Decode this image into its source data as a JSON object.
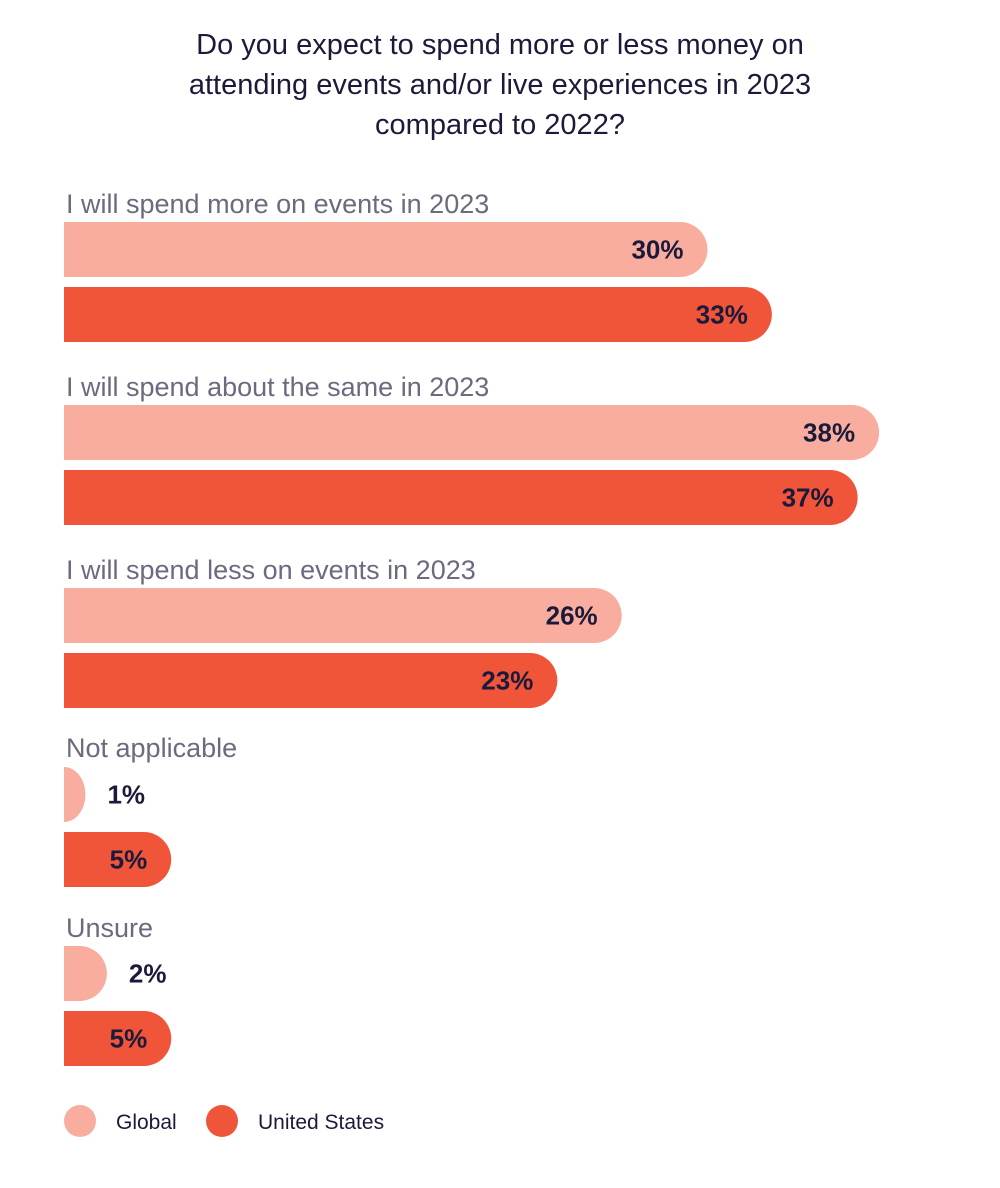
{
  "chart_data": {
    "type": "bar",
    "orientation": "horizontal",
    "title": "Do you expect to spend more or less money on attending events and/or live experiences in 2023 compared to 2022?",
    "title_lines": [
      "Do you expect to spend more or less money on",
      "attending events and/or live experiences in 2023",
      "compared to 2022?"
    ],
    "categories": [
      "I will spend more on events in 2023",
      "I will spend about the same in 2023",
      "I will spend less on events in 2023",
      "Not applicable",
      "Unsure"
    ],
    "series": [
      {
        "name": "Global",
        "values": [
          30,
          38,
          26,
          1,
          2
        ],
        "labels": [
          "30%",
          "38%",
          "26%",
          "1%",
          "2%"
        ],
        "color": "#f9ad9e"
      },
      {
        "name": "United States",
        "values": [
          33,
          37,
          23,
          5,
          5
        ],
        "labels": [
          "33%",
          "37%",
          "23%",
          "5%",
          "5%"
        ],
        "color": "#f05439"
      }
    ],
    "unit": "%",
    "xlim": [
      0,
      40
    ],
    "grid": false,
    "legend": "bottom-left"
  }
}
